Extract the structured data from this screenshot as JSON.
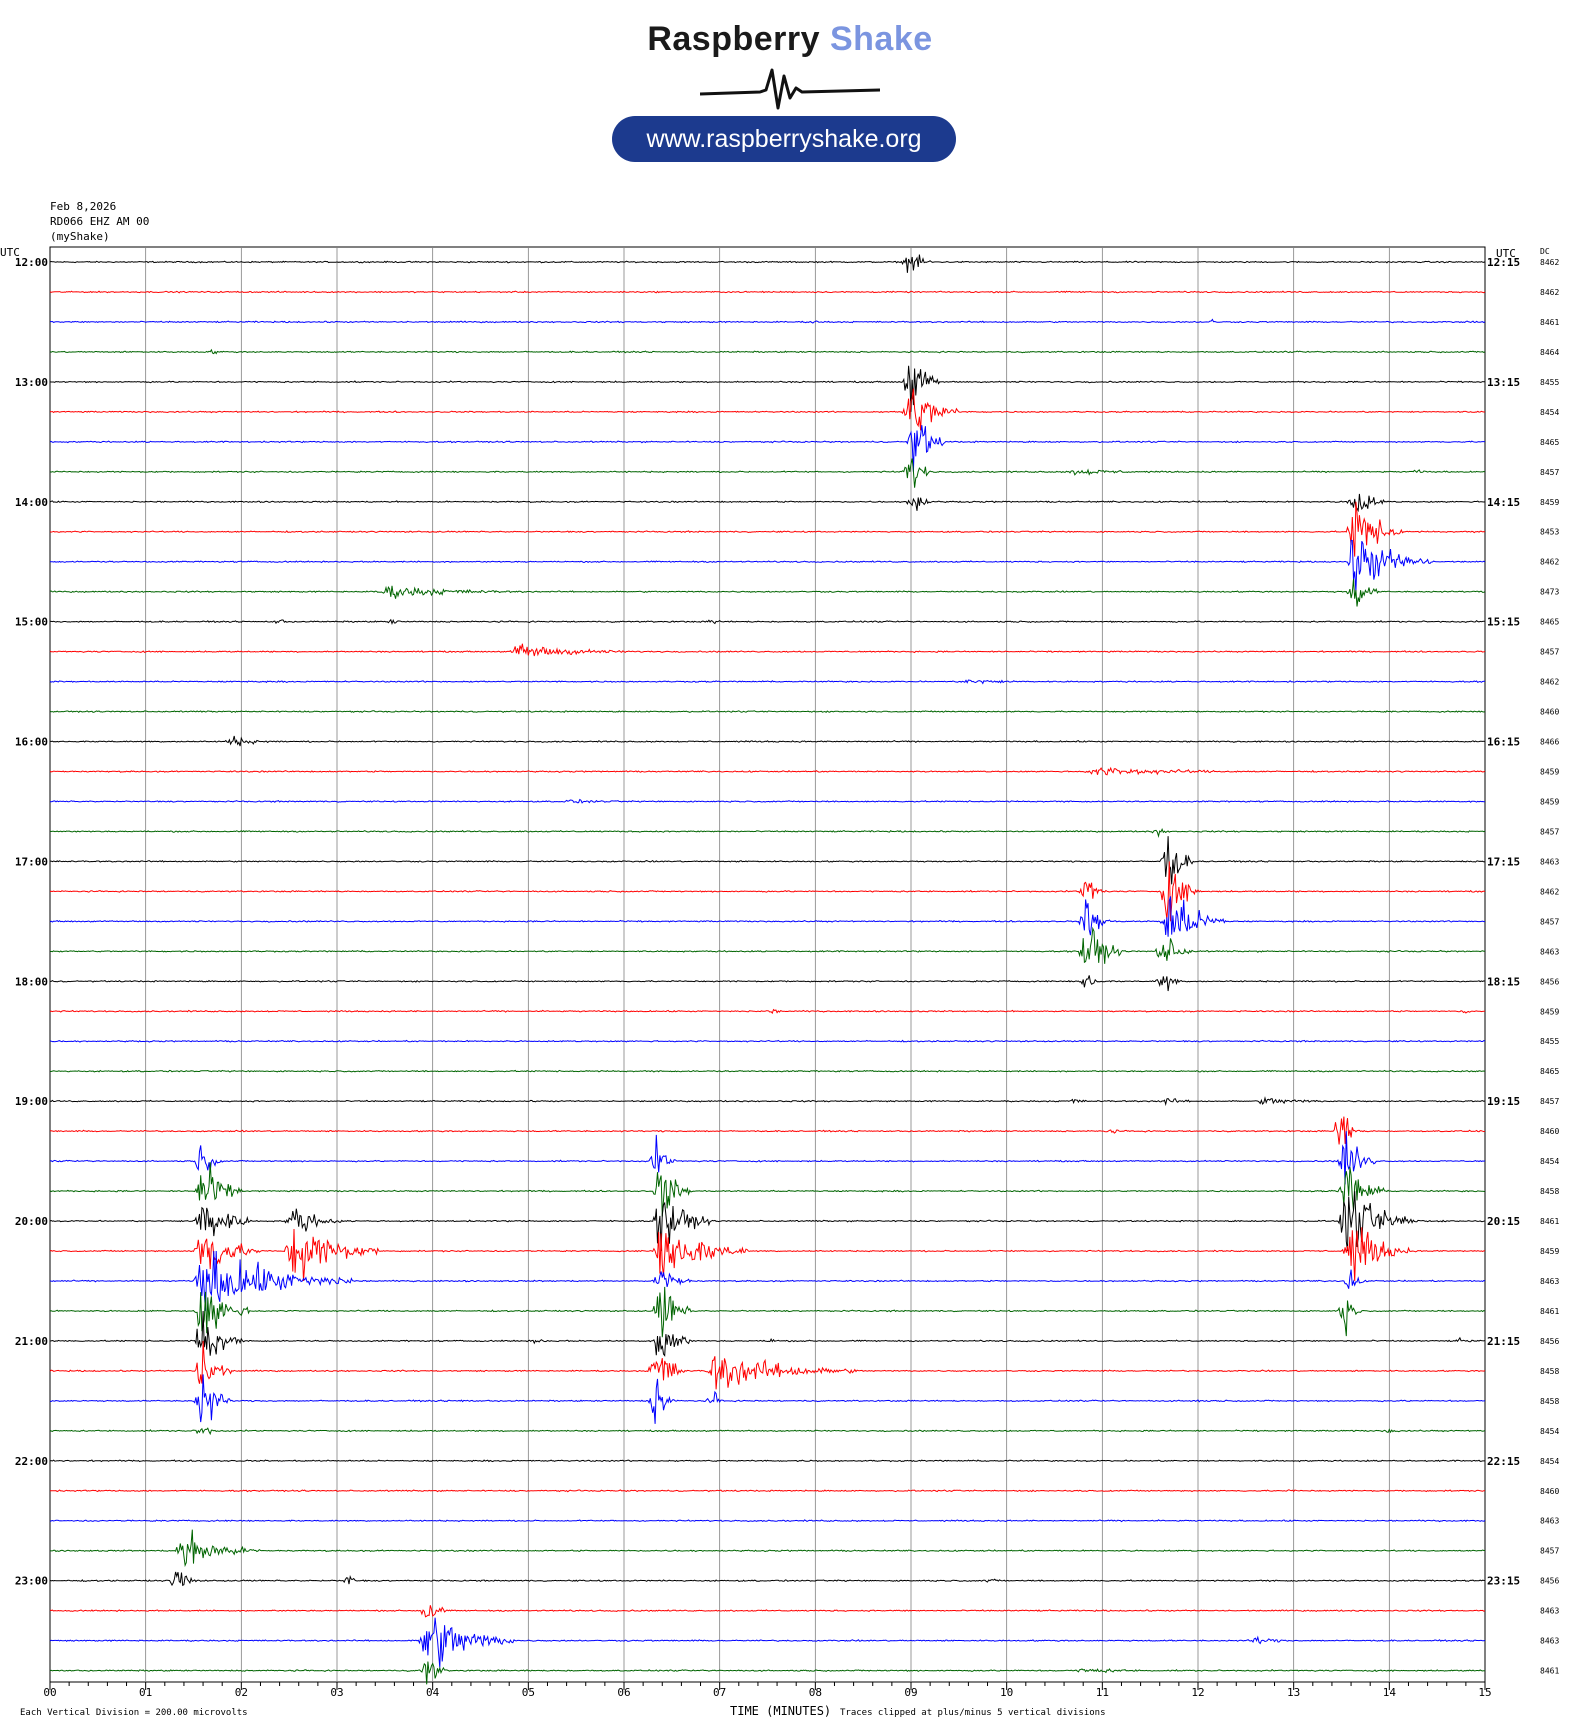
{
  "header": {
    "brand_main": "Raspberry",
    "brand_accent": "Shake",
    "url": "www.raspberryshake.org"
  },
  "meta": {
    "date": "Feb 8,2026",
    "station": "RD066 EHZ AM 00",
    "owner": "(myShake)",
    "left_axis_label": "UTC",
    "right_axis_label": "UTC",
    "dc_label": "DC",
    "xlabel": "TIME (MINUTES)",
    "scale_note": "Each Vertical Division =  200.00 microvolts",
    "clip_note": "Traces clipped at plus/minus 5 vertical divisions"
  },
  "colors": {
    "black": "#000000",
    "red": "#ff0000",
    "blue": "#0000ff",
    "green": "#006400",
    "grid": "#808080"
  },
  "chart_data": {
    "type": "line",
    "title": "",
    "x_ticks": [
      "00",
      "01",
      "02",
      "03",
      "04",
      "05",
      "06",
      "07",
      "08",
      "09",
      "10",
      "11",
      "12",
      "13",
      "14",
      "15"
    ],
    "xlim": [
      0,
      15
    ],
    "grid": true,
    "trace_count": 48,
    "trace_colors": [
      "black",
      "red",
      "blue",
      "green"
    ],
    "left_hour_labels": [
      "12:00",
      "13:00",
      "14:00",
      "15:00",
      "16:00",
      "17:00",
      "18:00",
      "19:00",
      "20:00",
      "21:00",
      "22:00",
      "23:00"
    ],
    "right_hour_labels": [
      "12:15",
      "13:15",
      "14:15",
      "15:15",
      "16:15",
      "17:15",
      "18:15",
      "19:15",
      "20:15",
      "21:15",
      "22:15",
      "23:15"
    ],
    "dc_offsets": [
      "8462",
      "8462",
      "8461",
      "8464",
      "8455",
      "8454",
      "8465",
      "8457",
      "8459",
      "8453",
      "8462",
      "8473",
      "8465",
      "8457",
      "8462",
      "8460",
      "8466",
      "8459",
      "8459",
      "8457",
      "8463",
      "8462",
      "8457",
      "8463",
      "8456",
      "8459",
      "8455",
      "8465",
      "8457",
      "8460",
      "8454",
      "8458",
      "8461",
      "8459",
      "8463",
      "8461",
      "8456",
      "8458",
      "8458",
      "8454",
      "8454",
      "8460",
      "8463",
      "8457",
      "8456",
      "8463",
      "8463",
      "8461"
    ],
    "events": [
      {
        "trace": 0,
        "minute": 9.0,
        "amp": 2.0,
        "dur": 0.25
      },
      {
        "trace": 2,
        "minute": 8.0,
        "amp": 0.3,
        "dur": 0.1
      },
      {
        "trace": 2,
        "minute": 12.15,
        "amp": 0.5,
        "dur": 0.05
      },
      {
        "trace": 3,
        "minute": 1.7,
        "amp": 0.3,
        "dur": 0.3
      },
      {
        "trace": 4,
        "minute": 9.0,
        "amp": 5.0,
        "dur": 0.3
      },
      {
        "trace": 5,
        "minute": 9.0,
        "amp": 5.0,
        "dur": 0.5
      },
      {
        "trace": 6,
        "minute": 9.05,
        "amp": 5.0,
        "dur": 0.3
      },
      {
        "trace": 7,
        "minute": 9.0,
        "amp": 3.0,
        "dur": 0.25
      },
      {
        "trace": 7,
        "minute": 10.7,
        "amp": 0.5,
        "dur": 1.2
      },
      {
        "trace": 7,
        "minute": 14.3,
        "amp": 0.4,
        "dur": 0.15
      },
      {
        "trace": 8,
        "minute": 9.05,
        "amp": 2.5,
        "dur": 0.15
      },
      {
        "trace": 8,
        "minute": 13.65,
        "amp": 3.0,
        "dur": 0.3
      },
      {
        "trace": 9,
        "minute": 13.65,
        "amp": 5.0,
        "dur": 0.5
      },
      {
        "trace": 10,
        "minute": 13.65,
        "amp": 5.0,
        "dur": 0.8
      },
      {
        "trace": 11,
        "minute": 13.65,
        "amp": 3.0,
        "dur": 0.25
      },
      {
        "trace": 11,
        "minute": 3.5,
        "amp": 1.0,
        "dur": 1.6
      },
      {
        "trace": 12,
        "minute": 2.4,
        "amp": 0.5,
        "dur": 0.15
      },
      {
        "trace": 12,
        "minute": 3.6,
        "amp": 0.5,
        "dur": 0.1
      },
      {
        "trace": 12,
        "minute": 6.95,
        "amp": 0.6,
        "dur": 0.1
      },
      {
        "trace": 13,
        "minute": 4.9,
        "amp": 1.2,
        "dur": 1.3
      },
      {
        "trace": 14,
        "minute": 9.6,
        "amp": 0.4,
        "dur": 1.1
      },
      {
        "trace": 16,
        "minute": 1.9,
        "amp": 0.9,
        "dur": 0.5
      },
      {
        "trace": 17,
        "minute": 10.9,
        "amp": 0.7,
        "dur": 2.1
      },
      {
        "trace": 18,
        "minute": 5.4,
        "amp": 0.3,
        "dur": 1.2
      },
      {
        "trace": 19,
        "minute": 11.6,
        "amp": 0.8,
        "dur": 0.1
      },
      {
        "trace": 20,
        "minute": 11.7,
        "amp": 5.0,
        "dur": 0.25
      },
      {
        "trace": 21,
        "minute": 11.7,
        "amp": 5.0,
        "dur": 0.35
      },
      {
        "trace": 21,
        "minute": 10.85,
        "amp": 3.0,
        "dur": 0.2
      },
      {
        "trace": 22,
        "minute": 11.7,
        "amp": 5.0,
        "dur": 0.6
      },
      {
        "trace": 22,
        "minute": 10.85,
        "amp": 4.0,
        "dur": 0.25
      },
      {
        "trace": 23,
        "minute": 10.85,
        "amp": 5.0,
        "dur": 0.35
      },
      {
        "trace": 23,
        "minute": 11.65,
        "amp": 3.0,
        "dur": 0.3
      },
      {
        "trace": 24,
        "minute": 11.65,
        "amp": 2.0,
        "dur": 0.2
      },
      {
        "trace": 24,
        "minute": 10.85,
        "amp": 2.0,
        "dur": 0.15
      },
      {
        "trace": 25,
        "minute": 7.55,
        "amp": 0.4,
        "dur": 0.2
      },
      {
        "trace": 25,
        "minute": 14.8,
        "amp": 0.4,
        "dur": 0.15
      },
      {
        "trace": 28,
        "minute": 10.7,
        "amp": 0.5,
        "dur": 0.2
      },
      {
        "trace": 28,
        "minute": 11.65,
        "amp": 0.6,
        "dur": 0.4
      },
      {
        "trace": 28,
        "minute": 12.7,
        "amp": 0.6,
        "dur": 0.9
      },
      {
        "trace": 29,
        "minute": 11.1,
        "amp": 0.4,
        "dur": 0.15
      },
      {
        "trace": 29,
        "minute": 13.5,
        "amp": 4.0,
        "dur": 0.2
      },
      {
        "trace": 30,
        "minute": 13.55,
        "amp": 5.0,
        "dur": 0.3
      },
      {
        "trace": 30,
        "minute": 6.35,
        "amp": 3.0,
        "dur": 0.2
      },
      {
        "trace": 30,
        "minute": 1.6,
        "amp": 3.0,
        "dur": 0.2
      },
      {
        "trace": 31,
        "minute": 13.55,
        "amp": 5.0,
        "dur": 0.4
      },
      {
        "trace": 31,
        "minute": 6.4,
        "amp": 5.0,
        "dur": 0.3
      },
      {
        "trace": 31,
        "minute": 1.6,
        "amp": 5.0,
        "dur": 0.4
      },
      {
        "trace": 32,
        "minute": 13.55,
        "amp": 5.0,
        "dur": 0.8
      },
      {
        "trace": 32,
        "minute": 6.4,
        "amp": 5.0,
        "dur": 0.5
      },
      {
        "trace": 32,
        "minute": 1.6,
        "amp": 5.0,
        "dur": 0.5
      },
      {
        "trace": 32,
        "minute": 2.55,
        "amp": 2.5,
        "dur": 0.5
      },
      {
        "trace": 33,
        "minute": 6.4,
        "amp": 5.0,
        "dur": 0.9
      },
      {
        "trace": 33,
        "minute": 13.6,
        "amp": 5.0,
        "dur": 0.6
      },
      {
        "trace": 33,
        "minute": 1.6,
        "amp": 5.0,
        "dur": 0.6
      },
      {
        "trace": 33,
        "minute": 2.55,
        "amp": 5.0,
        "dur": 0.9
      },
      {
        "trace": 34,
        "minute": 1.6,
        "amp": 5.0,
        "dur": 1.6
      },
      {
        "trace": 34,
        "minute": 6.4,
        "amp": 3.0,
        "dur": 0.3
      },
      {
        "trace": 34,
        "minute": 13.6,
        "amp": 2.0,
        "dur": 0.15
      },
      {
        "trace": 35,
        "minute": 1.6,
        "amp": 5.0,
        "dur": 0.5
      },
      {
        "trace": 35,
        "minute": 6.4,
        "amp": 5.0,
        "dur": 0.3
      },
      {
        "trace": 35,
        "minute": 13.55,
        "amp": 3.0,
        "dur": 0.15
      },
      {
        "trace": 36,
        "minute": 1.6,
        "amp": 5.0,
        "dur": 0.4
      },
      {
        "trace": 36,
        "minute": 6.4,
        "amp": 5.0,
        "dur": 0.3
      },
      {
        "trace": 36,
        "minute": 5.1,
        "amp": 0.6,
        "dur": 0.15
      },
      {
        "trace": 36,
        "minute": 7.55,
        "amp": 0.4,
        "dur": 0.2
      },
      {
        "trace": 36,
        "minute": 14.75,
        "amp": 0.4,
        "dur": 0.3
      },
      {
        "trace": 37,
        "minute": 6.95,
        "amp": 3.0,
        "dur": 1.5
      },
      {
        "trace": 37,
        "minute": 1.6,
        "amp": 5.0,
        "dur": 0.3
      },
      {
        "trace": 37,
        "minute": 6.35,
        "amp": 5.0,
        "dur": 0.3
      },
      {
        "trace": 38,
        "minute": 6.35,
        "amp": 4.0,
        "dur": 0.2
      },
      {
        "trace": 38,
        "minute": 6.95,
        "amp": 1.2,
        "dur": 0.1
      },
      {
        "trace": 38,
        "minute": 1.6,
        "amp": 5.0,
        "dur": 0.3
      },
      {
        "trace": 38,
        "minute": 4.35,
        "amp": 0.5,
        "dur": 0.05
      },
      {
        "trace": 38,
        "minute": 12.0,
        "amp": 0.5,
        "dur": 0.05
      },
      {
        "trace": 39,
        "minute": 1.6,
        "amp": 1.5,
        "dur": 0.15
      },
      {
        "trace": 39,
        "minute": 14.0,
        "amp": 0.4,
        "dur": 0.2
      },
      {
        "trace": 41,
        "minute": 13.0,
        "amp": 0.3,
        "dur": 0.05
      },
      {
        "trace": 43,
        "minute": 1.4,
        "amp": 3.0,
        "dur": 0.8
      },
      {
        "trace": 44,
        "minute": 1.35,
        "amp": 2.5,
        "dur": 0.2
      },
      {
        "trace": 44,
        "minute": 3.15,
        "amp": 1.5,
        "dur": 0.05
      },
      {
        "trace": 44,
        "minute": 9.8,
        "amp": 0.3,
        "dur": 0.4
      },
      {
        "trace": 45,
        "minute": 3.95,
        "amp": 3.0,
        "dur": 0.2
      },
      {
        "trace": 46,
        "minute": 3.95,
        "amp": 5.0,
        "dur": 0.9
      },
      {
        "trace": 46,
        "minute": 12.6,
        "amp": 0.6,
        "dur": 0.5
      },
      {
        "trace": 47,
        "minute": 3.95,
        "amp": 3.0,
        "dur": 0.2
      },
      {
        "trace": 47,
        "minute": 10.8,
        "amp": 0.4,
        "dur": 1.2
      }
    ]
  }
}
